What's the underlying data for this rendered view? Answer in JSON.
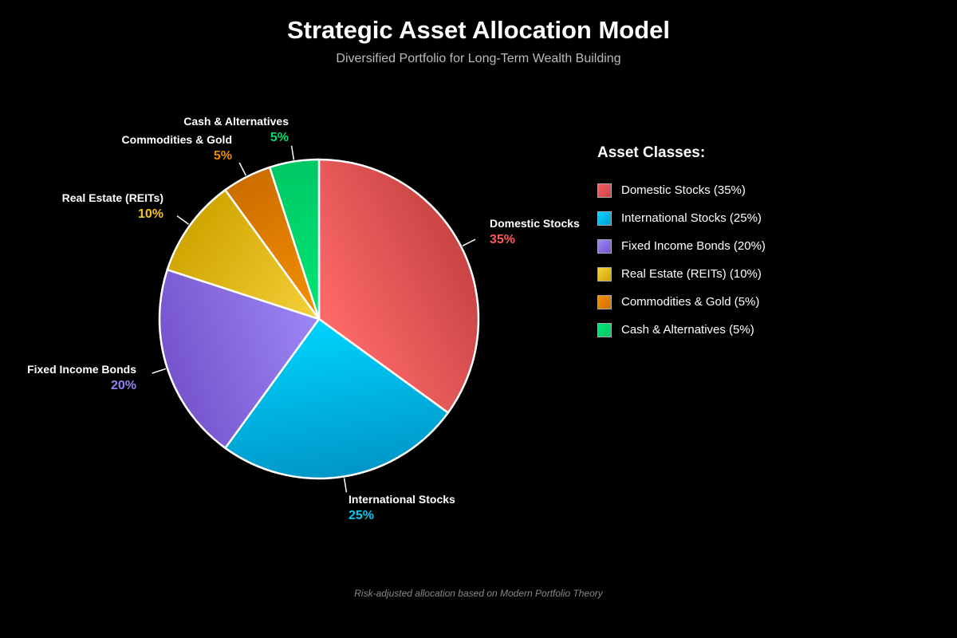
{
  "header": {
    "title": "Strategic Asset Allocation Model",
    "subtitle": "Diversified Portfolio for Long-Term Wealth Building"
  },
  "legend": {
    "title": "Asset Classes:",
    "items": [
      {
        "label": "Domestic Stocks (35%)",
        "color": "#e05555"
      },
      {
        "label": "International Stocks (25%)",
        "color": "#00b8e6"
      },
      {
        "label": "Fixed Income Bonds (20%)",
        "color": "#8a6ee8"
      },
      {
        "label": "Real Estate (REITs) (10%)",
        "color": "#e6bf20"
      },
      {
        "label": "Commodities & Gold (5%)",
        "color": "#e68a00"
      },
      {
        "label": "Cash & Alternatives (5%)",
        "color": "#00d46a"
      }
    ]
  },
  "footer": {
    "note": "Risk-adjusted allocation based on Modern Portfolio Theory"
  },
  "chart_data": {
    "type": "pie",
    "title": "Strategic Asset Allocation Model",
    "subtitle": "Diversified Portfolio for Long-Term Wealth Building",
    "categories": [
      "Domestic Stocks",
      "International Stocks",
      "Fixed Income Bonds",
      "Real Estate (REITs)",
      "Commodities & Gold",
      "Cash & Alternatives"
    ],
    "values": [
      35,
      25,
      20,
      10,
      5,
      5
    ],
    "labels": [
      "35%",
      "25%",
      "20%",
      "10%",
      "5%",
      "5%"
    ],
    "colors": [
      "#ff6b6b",
      "#00d4ff",
      "#9b87f5",
      "#f5d03b",
      "#f59000",
      "#00e676"
    ],
    "colors_dark": [
      "#c94444",
      "#0096c7",
      "#7654cc",
      "#cfa500",
      "#cc6e00",
      "#00c864"
    ],
    "label_colors": [
      "#ff5a5a",
      "#00c8f0",
      "#9380f0",
      "#f5c518",
      "#f08a00",
      "#00e070"
    ],
    "start_angle_deg": 0,
    "direction": "clockwise",
    "legend_position": "right",
    "footnote": "Risk-adjusted allocation based on Modern Portfolio Theory"
  }
}
